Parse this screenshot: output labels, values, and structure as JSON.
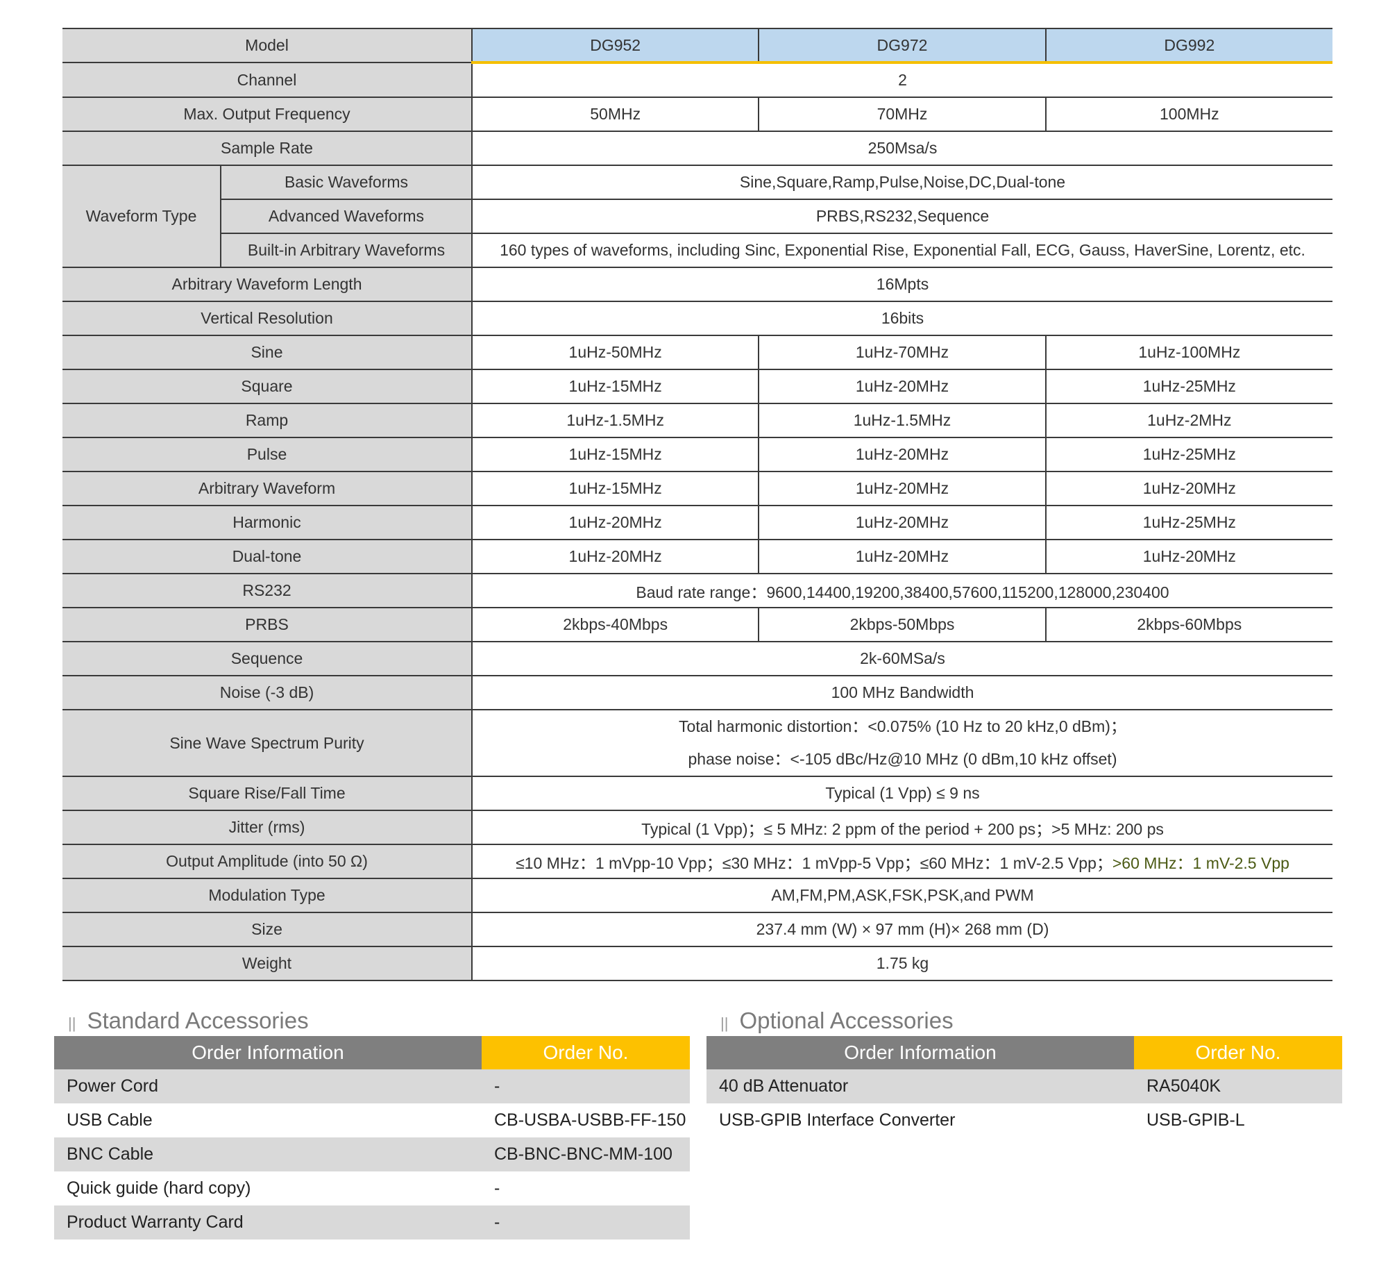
{
  "spec_table": {
    "header": {
      "label": "Model",
      "models": [
        "DG952",
        "DG972",
        "DG992"
      ]
    },
    "rows": [
      {
        "label": "Channel",
        "value": "2"
      },
      {
        "label": "Max. Output Frequency",
        "values": [
          "50MHz",
          "70MHz",
          "100MHz"
        ]
      },
      {
        "label": "Sample Rate",
        "value": "250Msa/s"
      },
      {
        "group": "Waveform Type",
        "label": "Basic Waveforms",
        "value": "Sine,Square,Ramp,Pulse,Noise,DC,Dual-tone"
      },
      {
        "group": "Waveform Type",
        "label": "Advanced Waveforms",
        "value": "PRBS,RS232,Sequence"
      },
      {
        "group": "Waveform Type",
        "label": "Built-in Arbitrary Waveforms",
        "value": "160 types of waveforms, including Sinc, Exponential Rise, Exponential Fall, ECG, Gauss, HaverSine, Lorentz, etc."
      },
      {
        "label": "Arbitrary Waveform Length",
        "value": "16Mpts"
      },
      {
        "label": "Vertical Resolution",
        "value": "16bits"
      },
      {
        "label": "Sine",
        "values": [
          "1uHz-50MHz",
          "1uHz-70MHz",
          "1uHz-100MHz"
        ]
      },
      {
        "label": "Square",
        "values": [
          "1uHz-15MHz",
          "1uHz-20MHz",
          "1uHz-25MHz"
        ]
      },
      {
        "label": "Ramp",
        "values": [
          "1uHz-1.5MHz",
          "1uHz-1.5MHz",
          "1uHz-2MHz"
        ]
      },
      {
        "label": "Pulse",
        "values": [
          "1uHz-15MHz",
          "1uHz-20MHz",
          "1uHz-25MHz"
        ]
      },
      {
        "label": "Arbitrary Waveform",
        "values": [
          "1uHz-15MHz",
          "1uHz-20MHz",
          "1uHz-20MHz"
        ]
      },
      {
        "label": "Harmonic",
        "values": [
          "1uHz-20MHz",
          "1uHz-20MHz",
          "1uHz-25MHz"
        ]
      },
      {
        "label": "Dual-tone",
        "values": [
          "1uHz-20MHz",
          "1uHz-20MHz",
          "1uHz-20MHz"
        ]
      },
      {
        "label": "RS232",
        "value": "Baud rate range：9600,14400,19200,38400,57600,115200,128000,230400"
      },
      {
        "label": "PRBS",
        "values": [
          "2kbps-40Mbps",
          "2kbps-50Mbps",
          "2kbps-60Mbps"
        ]
      },
      {
        "label": "Sequence",
        "value": "2k-60MSa/s"
      },
      {
        "label": "Noise (-3 dB)",
        "value": "100 MHz Bandwidth"
      },
      {
        "label": "Sine Wave Spectrum Purity",
        "lines": [
          "Total harmonic distortion：<0.075% (10 Hz to 20 kHz,0 dBm)；",
          "phase noise：<-105 dBc/Hz@10 MHz (0 dBm,10 kHz offset)"
        ]
      },
      {
        "label": "Square Rise/Fall Time",
        "value": "Typical (1 Vpp) ≤ 9 ns"
      },
      {
        "label": "Jitter (rms)",
        "value": "Typical (1 Vpp)；≤ 5 MHz: 2 ppm of the period + 200 ps；>5 MHz: 200 ps"
      },
      {
        "label": "Output Amplitude (into 50  Ω)",
        "value": "≤10 MHz：1 mVpp-10 Vpp；≤30 MHz：1 mVpp-5 Vpp；≤60 MHz：1 mV-2.5 Vpp；",
        "highlight": ">60 MHz：1 mV-2.5 Vpp"
      },
      {
        "label": "Modulation Type",
        "value": "AM,FM,PM,ASK,FSK,PSK,and PWM"
      },
      {
        "label": "Size",
        "value": "237.4 mm (W) × 97 mm (H)× 268 mm (D)"
      },
      {
        "label": "Weight",
        "value": "1.75 kg"
      }
    ]
  },
  "standard_accessories": {
    "title": "Standard Accessories",
    "col_info": "Order Information",
    "col_no": "Order No.",
    "items": [
      [
        "Power Cord",
        "-"
      ],
      [
        "USB Cable",
        "CB-USBA-USBB-FF-150"
      ],
      [
        "BNC Cable",
        "CB-BNC-BNC-MM-100"
      ],
      [
        "Quick guide (hard copy)",
        "-"
      ],
      [
        "Product Warranty Card",
        "-"
      ]
    ]
  },
  "optional_accessories": {
    "title": "Optional Accessories",
    "col_info": "Order Information",
    "col_no": "Order No.",
    "items": [
      [
        "40 dB Attenuator",
        "RA5040K"
      ],
      [
        "USB-GPIB Interface Converter",
        "USB-GPIB-L"
      ]
    ]
  },
  "colors": {
    "header_blue": "#bdd7ee",
    "accent_yellow": "#fdc100",
    "label_gray": "#d9d9d9",
    "highlight_green": "#4b5a14"
  }
}
